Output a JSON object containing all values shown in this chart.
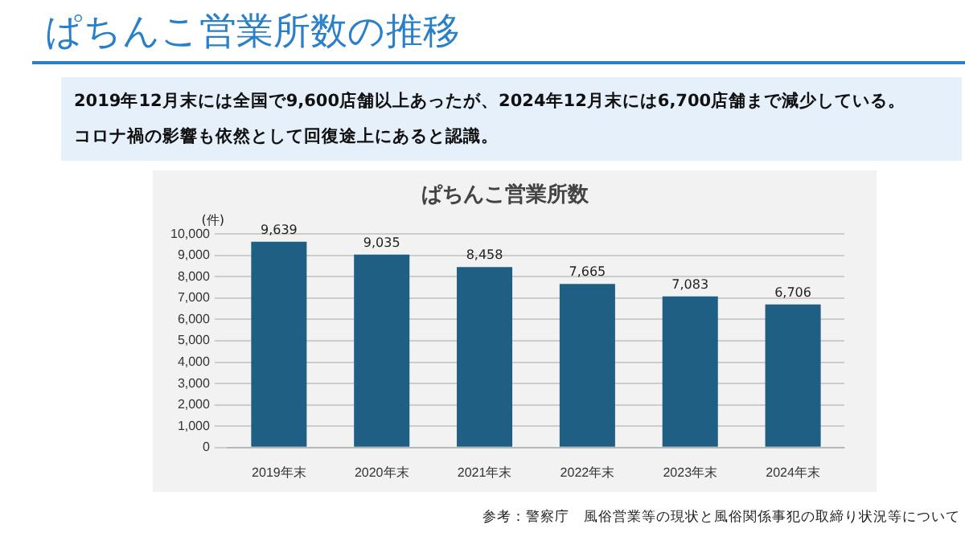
{
  "chart_data": {
    "type": "bar",
    "title": "ぱちんこ営業所数の推移",
    "subtitle": "ぱちんこ営業所数",
    "ylabel": "(件)",
    "categories": [
      "2019年末",
      "2020年末",
      "2021年末",
      "2022年末",
      "2023年末",
      "2024年末"
    ],
    "values": [
      9639,
      9035,
      8458,
      7665,
      7083,
      6706
    ],
    "color": "#1f5f84",
    "value_labels": [
      "9,639",
      "9,035",
      "8,458",
      "7,665",
      "7,083",
      "6,706"
    ],
    "ylim": [
      0,
      10000
    ],
    "yticks": [
      0,
      {
        "value": 1000,
        "label": "1,000"
      },
      {
        "value": 2000,
        "label": "2,000"
      },
      {
        "value": 3000,
        "label": "3,000"
      },
      {
        "value": 4000,
        "label": "4,000"
      },
      {
        "value": 5000,
        "label": "5,000"
      },
      {
        "value": 6000,
        "label": "6,000"
      },
      {
        "value": 7000,
        "label": "7,000"
      },
      {
        "value": 8000,
        "label": "8,000"
      },
      {
        "value": 9000,
        "label": "9,000"
      },
      {
        "value": 10000,
        "label": "10,000"
      }
    ],
    "grid": "y",
    "annotations": [
      "2019年12月末には全国で9,600店舗以上あったが、2024年12月末には6,700店舗まで減少している。",
      "コロナ禍の影響も依然として回復途上にあると認識。",
      "参考：警察庁　風俗営業等の現状と風俗関係事犯の取締り状況等について"
    ]
  }
}
